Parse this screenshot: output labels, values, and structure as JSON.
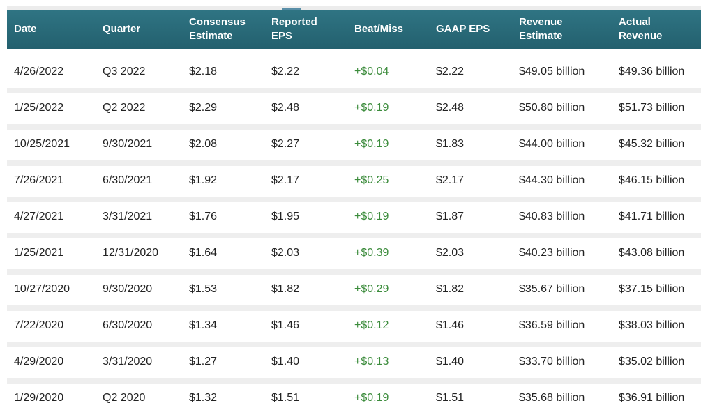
{
  "table": {
    "columns": [
      "Date",
      "Quarter",
      "Consensus Estimate",
      "Reported EPS",
      "Beat/Miss",
      "GAAP EPS",
      "Revenue Estimate",
      "Actual Revenue"
    ],
    "rows": [
      [
        "4/26/2022",
        "Q3 2022",
        "$2.18",
        "$2.22",
        "+$0.04",
        "$2.22",
        "$49.05 billion",
        "$49.36 billion"
      ],
      [
        "1/25/2022",
        "Q2 2022",
        "$2.29",
        "$2.48",
        "+$0.19",
        "$2.48",
        "$50.80 billion",
        "$51.73 billion"
      ],
      [
        "10/25/2021",
        "9/30/2021",
        "$2.08",
        "$2.27",
        "+$0.19",
        "$1.83",
        "$44.00 billion",
        "$45.32 billion"
      ],
      [
        "7/26/2021",
        "6/30/2021",
        "$1.92",
        "$2.17",
        "+$0.25",
        "$2.17",
        "$44.30 billion",
        "$46.15 billion"
      ],
      [
        "4/27/2021",
        "3/31/2021",
        "$1.76",
        "$1.95",
        "+$0.19",
        "$1.87",
        "$40.83 billion",
        "$41.71 billion"
      ],
      [
        "1/25/2021",
        "12/31/2020",
        "$1.64",
        "$2.03",
        "+$0.39",
        "$2.03",
        "$40.23 billion",
        "$43.08 billion"
      ],
      [
        "10/27/2020",
        "9/30/2020",
        "$1.53",
        "$1.82",
        "+$0.29",
        "$1.82",
        "$35.67 billion",
        "$37.15 billion"
      ],
      [
        "7/22/2020",
        "6/30/2020",
        "$1.34",
        "$1.46",
        "+$0.12",
        "$1.46",
        "$36.59 billion",
        "$38.03 billion"
      ],
      [
        "4/29/2020",
        "3/31/2020",
        "$1.27",
        "$1.40",
        "+$0.13",
        "$1.40",
        "$33.70 billion",
        "$35.02 billion"
      ],
      [
        "1/29/2020",
        "Q2 2020",
        "$1.32",
        "$1.51",
        "+$0.19",
        "$1.51",
        "$35.68 billion",
        "$36.91 billion"
      ]
    ]
  }
}
